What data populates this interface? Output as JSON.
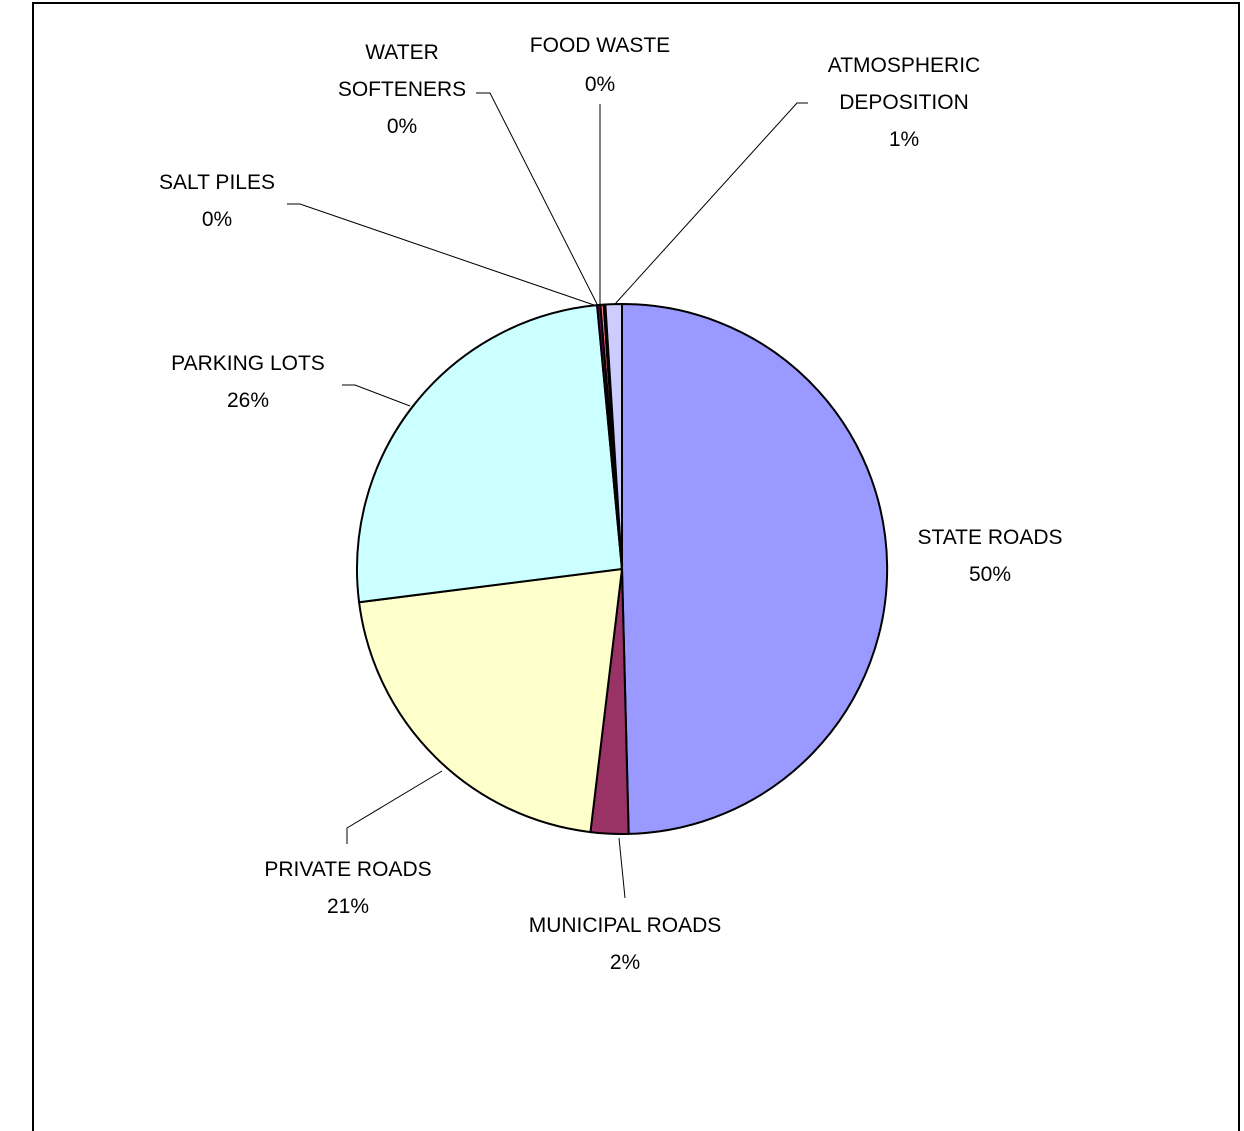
{
  "chart_data": {
    "type": "pie",
    "start_angle_deg": 0,
    "direction": "clockwise",
    "slices": [
      {
        "name": "STATE ROADS",
        "label": "STATE ROADS",
        "pct_label": "50%",
        "value": 49.6,
        "color": "#9999FF"
      },
      {
        "name": "MUNICIPAL ROADS",
        "label": "MUNICIPAL ROADS",
        "pct_label": "2%",
        "value": 2.3,
        "color": "#993366"
      },
      {
        "name": "PRIVATE ROADS",
        "label": "PRIVATE ROADS",
        "pct_label": "21%",
        "value": 21.1,
        "color": "#FFFFCC"
      },
      {
        "name": "PARKING LOTS",
        "label": "PARKING LOTS",
        "pct_label": "26%",
        "value": 25.5,
        "color": "#CCFFFF"
      },
      {
        "name": "SALT PILES",
        "label": "SALT PILES",
        "pct_label": "0%",
        "value": 0.2,
        "color": "#660066"
      },
      {
        "name": "WATER SOFTENERS",
        "label_lines": [
          "WATER",
          "SOFTENERS"
        ],
        "pct_label": "0%",
        "value": 0.2,
        "color": "#FF8080"
      },
      {
        "name": "FOOD WASTE",
        "label": "FOOD WASTE",
        "pct_label": "0%",
        "value": 0.1,
        "color": "#0066CC"
      },
      {
        "name": "ATMOSPHERIC DEPOSITION",
        "label_lines": [
          "ATMOSPHERIC",
          "DEPOSITION"
        ],
        "pct_label": "1%",
        "value": 1.0,
        "color": "#CCCCFF"
      }
    ]
  }
}
